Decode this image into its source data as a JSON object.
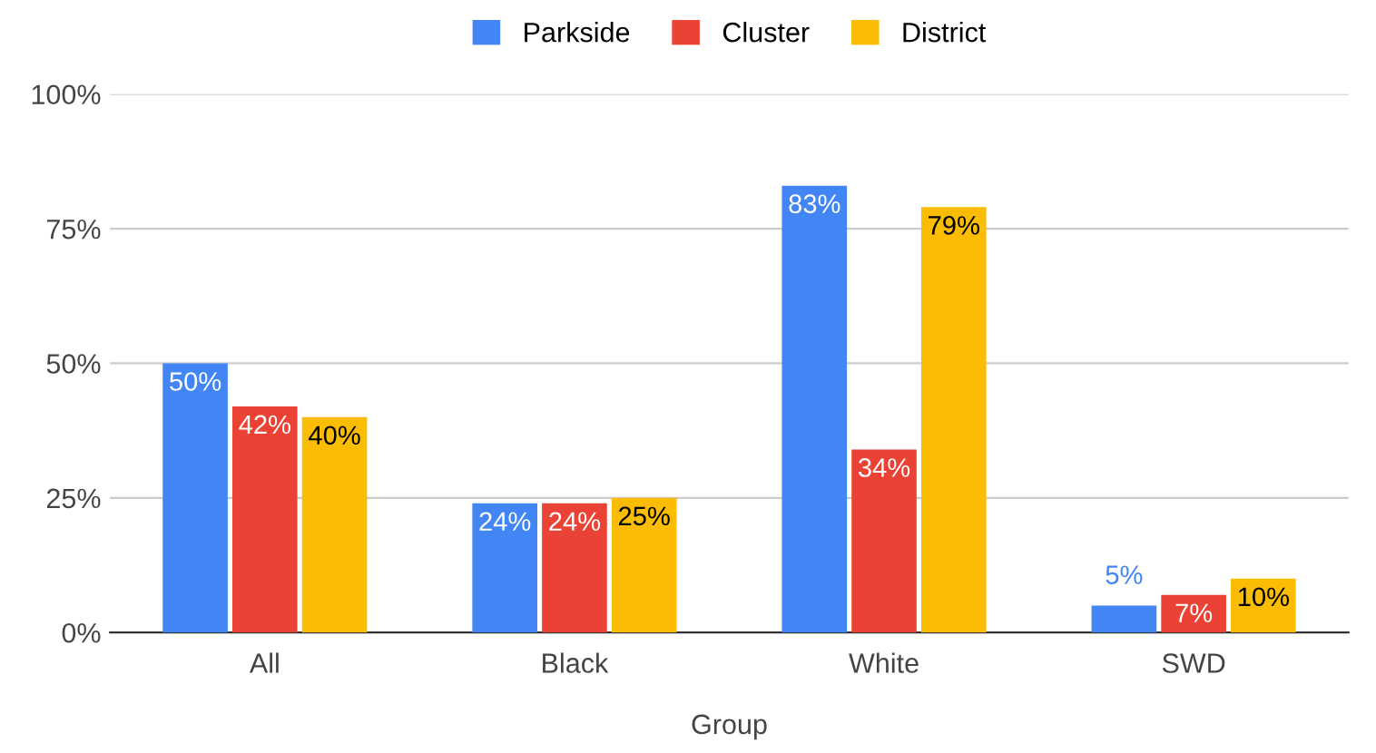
{
  "chart_data": {
    "type": "bar",
    "xlabel": "Group",
    "categories": [
      "All",
      "Black",
      "White",
      "SWD"
    ],
    "series": [
      {
        "name": "Parkside",
        "color": "#4285f4",
        "values": [
          50,
          24,
          83,
          5
        ],
        "value_labels": [
          "50%",
          "24%",
          "83%",
          "5%"
        ]
      },
      {
        "name": "Cluster",
        "color": "#ea4335",
        "values": [
          42,
          24,
          34,
          7
        ],
        "value_labels": [
          "42%",
          "24%",
          "34%",
          "7%"
        ]
      },
      {
        "name": "District",
        "color": "#fbbc04",
        "values": [
          40,
          25,
          79,
          10
        ],
        "value_labels": [
          "40%",
          "25%",
          "79%",
          "10%"
        ]
      }
    ],
    "ylim": [
      0,
      100
    ],
    "yticks": [
      {
        "value": 0,
        "label": "0%"
      },
      {
        "value": 25,
        "label": "25%"
      },
      {
        "value": 50,
        "label": "50%"
      },
      {
        "value": 75,
        "label": "75%"
      },
      {
        "value": 100,
        "label": "100%"
      }
    ],
    "grid": "y",
    "legend": "top"
  }
}
